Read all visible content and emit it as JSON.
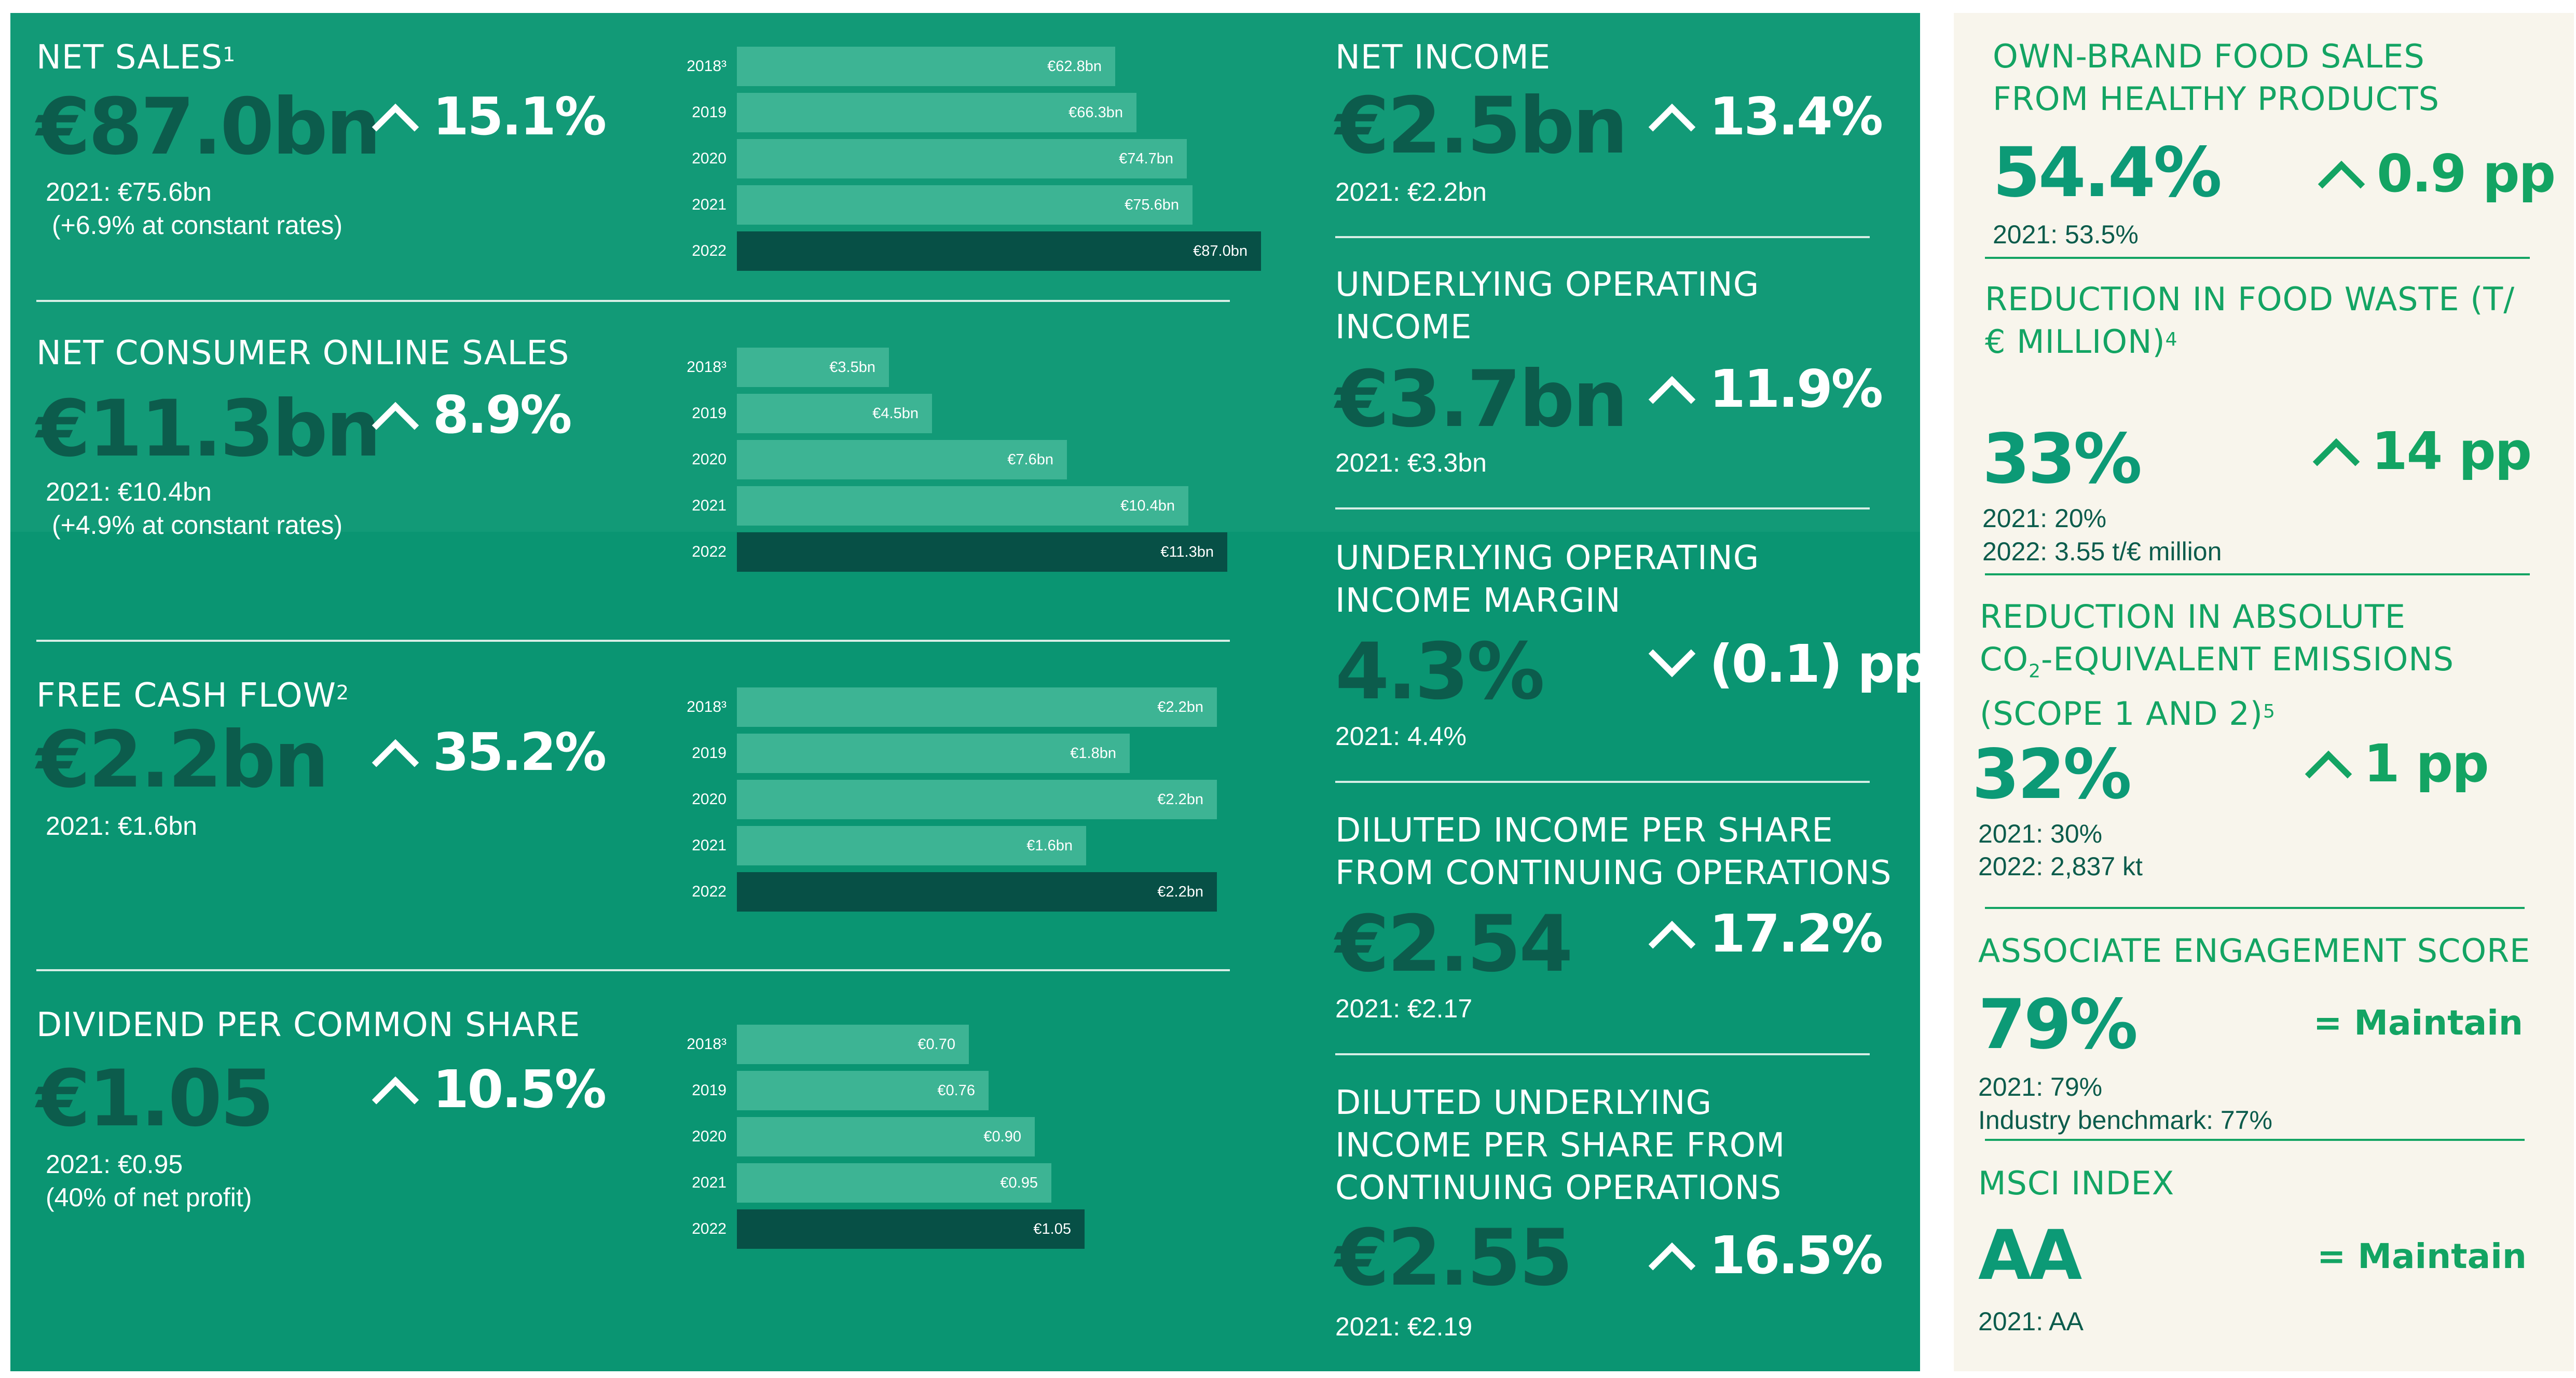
{
  "left_metrics": [
    {
      "label": "NET SALES",
      "label_sup": "1",
      "value": "€87.0bn",
      "change": "15.1%",
      "direction": "up",
      "notes": [
        "2021: €75.6bn",
        "(+6.9% at constant rates)"
      ],
      "bars": [
        {
          "year": "2018³",
          "value": 62.8,
          "text": "€62.8bn"
        },
        {
          "year": "2019",
          "value": 66.3,
          "text": "€66.3bn"
        },
        {
          "year": "2020",
          "value": 74.7,
          "text": "€74.7bn"
        },
        {
          "year": "2021",
          "value": 75.6,
          "text": "€75.6bn"
        },
        {
          "year": "2022",
          "value": 87.0,
          "text": "€87.0bn"
        }
      ]
    },
    {
      "label": "NET CONSUMER ONLINE SALES",
      "label_sup": "",
      "value": "€11.3bn",
      "change": "8.9%",
      "direction": "up",
      "notes": [
        "2021: €10.4bn",
        "(+4.9% at constant rates)"
      ],
      "bars": [
        {
          "year": "2018³",
          "value": 3.5,
          "text": "€3.5bn"
        },
        {
          "year": "2019",
          "value": 4.5,
          "text": "€4.5bn"
        },
        {
          "year": "2020",
          "value": 7.6,
          "text": "€7.6bn"
        },
        {
          "year": "2021",
          "value": 10.4,
          "text": "€10.4bn"
        },
        {
          "year": "2022",
          "value": 11.3,
          "text": "€11.3bn"
        }
      ]
    },
    {
      "label": "FREE CASH FLOW",
      "label_sup": "2",
      "value": "€2.2bn",
      "change": "35.2%",
      "direction": "up",
      "notes": [
        "2021: €1.6bn"
      ],
      "bars": [
        {
          "year": "2018³",
          "value": 2.2,
          "text": "€2.2bn"
        },
        {
          "year": "2019",
          "value": 1.8,
          "text": "€1.8bn"
        },
        {
          "year": "2020",
          "value": 2.2,
          "text": "€2.2bn"
        },
        {
          "year": "2021",
          "value": 1.6,
          "text": "€1.6bn"
        },
        {
          "year": "2022",
          "value": 2.2,
          "text": "€2.2bn"
        }
      ]
    },
    {
      "label": "DIVIDEND PER COMMON SHARE",
      "label_sup": "",
      "value": "€1.05",
      "change": "10.5%",
      "direction": "up",
      "notes": [
        "2021: €0.95",
        "(40% of net profit)"
      ],
      "bars": [
        {
          "year": "2018³",
          "value": 0.7,
          "text": "€0.70"
        },
        {
          "year": "2019",
          "value": 0.76,
          "text": "€0.76"
        },
        {
          "year": "2020",
          "value": 0.9,
          "text": "€0.90"
        },
        {
          "year": "2021",
          "value": 0.95,
          "text": "€0.95"
        },
        {
          "year": "2022",
          "value": 1.05,
          "text": "€1.05"
        }
      ]
    }
  ],
  "middle_metrics": [
    {
      "label_lines": [
        "NET INCOME"
      ],
      "value": "€2.5bn",
      "change": "13.4%",
      "direction": "up",
      "note": "2021: €2.2bn"
    },
    {
      "label_lines": [
        "UNDERLYING OPERATING",
        "INCOME"
      ],
      "value": "€3.7bn",
      "change": "11.9%",
      "direction": "up",
      "note": "2021: €3.3bn"
    },
    {
      "label_lines": [
        "UNDERLYING OPERATING",
        "INCOME MARGIN"
      ],
      "value": "4.3%",
      "change": "(0.1) pp",
      "direction": "down",
      "note": "2021: 4.4%"
    },
    {
      "label_lines": [
        "DILUTED INCOME PER SHARE",
        "FROM CONTINUING OPERATIONS"
      ],
      "value": "€2.54",
      "change": "17.2%",
      "direction": "up",
      "note": "2021: €2.17"
    },
    {
      "label_lines": [
        "DILUTED UNDERLYING",
        "INCOME PER SHARE FROM",
        "CONTINUING OPERATIONS"
      ],
      "value": "€2.55",
      "change": "16.5%",
      "direction": "up",
      "note": "2021: €2.19"
    }
  ],
  "right_metrics": [
    {
      "label_lines": [
        "OWN-BRAND FOOD SALES",
        "FROM HEALTHY PRODUCTS"
      ],
      "value": "54.4%",
      "change": "0.9 pp",
      "direction": "up",
      "notes": [
        "2021: 53.5%"
      ]
    },
    {
      "label_lines": [
        "REDUCTION IN FOOD WASTE (T/",
        "€ MILLION)"
      ],
      "label_sup": "4",
      "value": "33%",
      "change": "14 pp",
      "direction": "up",
      "notes": [
        "2021: 20%",
        "2022: 3.55 t/€ million"
      ]
    },
    {
      "label_lines": [
        "REDUCTION IN ABSOLUTE",
        "CO",
        "-EQUIVALENT EMISSIONS",
        "(SCOPE 1 AND 2)"
      ],
      "label_sub": "2",
      "label_sup": "5",
      "value": "32%",
      "change": "1 pp",
      "direction": "up",
      "notes": [
        "2021:  30%",
        "2022: 2,837 kt"
      ]
    },
    {
      "label_lines": [
        "ASSOCIATE ENGAGEMENT SCORE"
      ],
      "value": "79%",
      "change": "= Maintain",
      "direction": "equal",
      "notes": [
        "2021: 79%",
        "Industry benchmark: 77%"
      ]
    },
    {
      "label_lines": [
        "MSCI INDEX"
      ],
      "value": "AA",
      "change": "= Maintain",
      "direction": "equal",
      "notes": [
        "2021: AA"
      ]
    }
  ]
}
